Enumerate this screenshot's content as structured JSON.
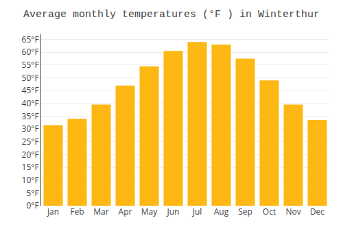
{
  "chart_data": {
    "type": "bar",
    "title": "Average monthly temperatures (°F ) in Winterthur",
    "categories": [
      "Jan",
      "Feb",
      "Mar",
      "Apr",
      "May",
      "Jun",
      "Jul",
      "Aug",
      "Sep",
      "Oct",
      "Nov",
      "Dec"
    ],
    "values": [
      31.5,
      34.0,
      39.5,
      47.0,
      54.5,
      60.5,
      64.0,
      63.0,
      57.5,
      49.0,
      39.5,
      33.5
    ],
    "color": "#FDB813",
    "ylim": [
      0,
      67
    ],
    "yticks": [
      {
        "value": 0,
        "label": "0°F"
      },
      {
        "value": 5,
        "label": "5°F"
      },
      {
        "value": 10,
        "label": "10°F"
      },
      {
        "value": 15,
        "label": "15°F"
      },
      {
        "value": 20,
        "label": "20°F"
      },
      {
        "value": 25,
        "label": "25°F"
      },
      {
        "value": 30,
        "label": "30°F"
      },
      {
        "value": 35,
        "label": "35°F"
      },
      {
        "value": 40,
        "label": "40°F"
      },
      {
        "value": 45,
        "label": "45°F"
      },
      {
        "value": 50,
        "label": "50°F"
      },
      {
        "value": 55,
        "label": "55°F"
      },
      {
        "value": 60,
        "label": "60°F"
      },
      {
        "value": 65,
        "label": "65°F"
      }
    ],
    "grid": true
  }
}
